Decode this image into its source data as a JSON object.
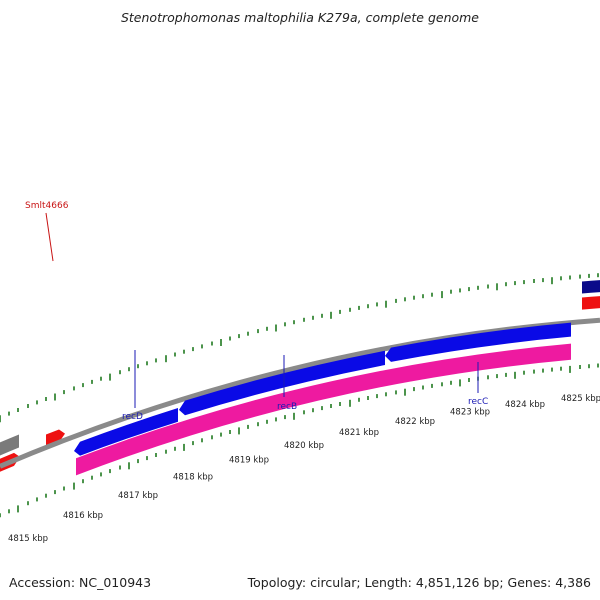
{
  "title": "Stenotrophomonas maltophilia K279a, complete genome",
  "footer": {
    "accession": "Accession: NC_010943",
    "summary": "Topology: circular; Length: 4,851,126 bp; Genes: 4,386"
  },
  "colors": {
    "backbone": "#8a8a8a",
    "forward_cds": "#0a0ae6",
    "dark_cds": "#0a0a8a",
    "reverse_cds": "#ee1111",
    "gene_bar": "#ee1aa0",
    "grey_cds": "#7a7a7a",
    "tick": "#1f7a1f",
    "gene_label_blue": "#1a1ab4",
    "gene_label_red": "#c81414"
  },
  "ruler": {
    "labels": [
      "4815 kbp",
      "4816 kbp",
      "4817 kbp",
      "4818 kbp",
      "4819 kbp",
      "4820 kbp",
      "4821 kbp",
      "4822 kbp",
      "4823 kbp",
      "4824 kbp",
      "4825 kbp"
    ]
  },
  "gene_labels": [
    {
      "text": "Smlt4666",
      "color": "gene_label_red"
    },
    {
      "text": "recD",
      "color": "gene_label_blue"
    },
    {
      "text": "recB",
      "color": "gene_label_blue"
    },
    {
      "text": "recC",
      "color": "gene_label_blue"
    }
  ]
}
